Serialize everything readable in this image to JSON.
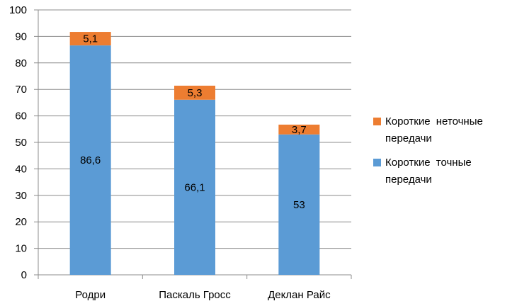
{
  "chart_data": {
    "type": "bar",
    "stacked": true,
    "categories": [
      "Родри",
      "Паскаль Гросс",
      "Деклан Райс"
    ],
    "series": [
      {
        "name": "Короткие точные передачи",
        "values": [
          86.6,
          66.1,
          53
        ],
        "labels": [
          "86,6",
          "66,1",
          "53"
        ],
        "color": "#5b9bd5"
      },
      {
        "name": "Короткие неточные передачи",
        "values": [
          5.1,
          5.3,
          3.7
        ],
        "labels": [
          "5,1",
          "5,3",
          "3,7"
        ],
        "color": "#ed7d31"
      }
    ],
    "ylim": [
      0,
      100
    ],
    "yticks": [
      0,
      10,
      20,
      30,
      40,
      50,
      60,
      70,
      80,
      90,
      100
    ],
    "grid": true,
    "legend_position": "right"
  },
  "legend": [
    {
      "label": "Короткие неточные передачи",
      "color": "#ed7d31"
    },
    {
      "label": "Короткие точные передачи",
      "color": "#5b9bd5"
    }
  ]
}
